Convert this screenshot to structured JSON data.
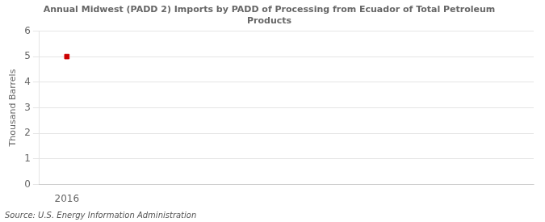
{
  "chart_data": {
    "type": "scatter",
    "title": "Annual Midwest (PADD 2) Imports by PADD of Processing from Ecuador of Total Petroleum\nProducts",
    "ylabel": "Thousand Barrels",
    "source": "Source: U.S. Energy Information Administration",
    "x": [
      2016
    ],
    "values": [
      5
    ],
    "color": "#cc0000",
    "marker": "square",
    "xlim": [
      2015.5,
      2024.5
    ],
    "xticks": [
      2016
    ],
    "ylim": [
      0,
      6
    ],
    "yticks": [
      0,
      1,
      2,
      3,
      4,
      5,
      6
    ],
    "grid": "y"
  }
}
